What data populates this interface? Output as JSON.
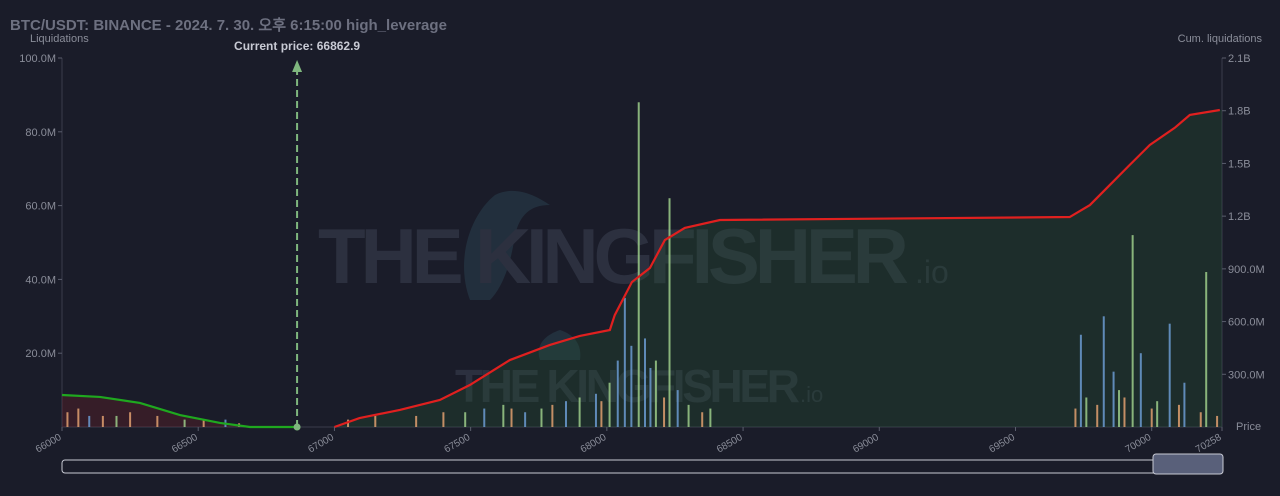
{
  "chart_data": {
    "type": "liquidation",
    "title": "BTC/USDT: BINANCE - 2024. 7. 30. 오후 6:15:00 high_leverage",
    "y_label": "Liquidations",
    "y2_label": "Cum. liquidations",
    "x_label": "Price",
    "watermark": [
      "THE KINGFISHER",
      ".io"
    ],
    "annotation": {
      "text": "Current price: 66862.9",
      "x": 66862.9,
      "color": "#7fb77e"
    },
    "xlim": [
      66000,
      70258
    ],
    "xticks": [
      66000,
      66500,
      67000,
      67500,
      68000,
      68500,
      69000,
      69500,
      70000,
      70258
    ],
    "ylim": [
      0,
      100000000
    ],
    "yticks": [
      {
        "value": 20000000,
        "label": "20.0M"
      },
      {
        "value": 40000000,
        "label": "40.0M"
      },
      {
        "value": 60000000,
        "label": "60.0M"
      },
      {
        "value": 80000000,
        "label": "80.0M"
      },
      {
        "value": 100000000,
        "label": "100.0M"
      }
    ],
    "y2lim": [
      0,
      2100000000
    ],
    "y2ticks": [
      {
        "value": 300000000,
        "label": "300.0M"
      },
      {
        "value": 600000000,
        "label": "600.0M"
      },
      {
        "value": 900000000,
        "label": "900.0M"
      },
      {
        "value": 1200000000,
        "label": "1.2B"
      },
      {
        "value": 1500000000,
        "label": "1.5B"
      },
      {
        "value": 1800000000,
        "label": "1.8B"
      },
      {
        "value": 2100000000,
        "label": "2.1B"
      }
    ],
    "bars": [
      {
        "color": "#9ccc8a",
        "x": [
          66200,
          66450,
          67480,
          67620,
          67760,
          67900,
          68010,
          68117,
          68180,
          68230,
          68300,
          68380,
          69760,
          69880,
          69930,
          70020,
          70200
        ],
        "values": [
          3000000,
          2000000,
          4000000,
          6000000,
          5000000,
          8000000,
          12000000,
          88000000,
          18000000,
          62000000,
          6000000,
          5000000,
          8000000,
          10000000,
          52000000,
          7000000,
          42000000
        ]
      },
      {
        "color": "#6b9bd1",
        "x": [
          66100,
          66600,
          67550,
          67700,
          67850,
          67960,
          68040,
          68066,
          68090,
          68140,
          68160,
          68260,
          69740,
          69824,
          69860,
          69960,
          70066,
          70120
        ],
        "values": [
          3000000,
          2000000,
          5000000,
          4000000,
          7000000,
          9000000,
          18000000,
          35000000,
          22000000,
          24000000,
          16000000,
          10000000,
          25000000,
          30000000,
          15000000,
          20000000,
          28000000,
          12000000
        ]
      },
      {
        "color": "#e0a070",
        "x": [
          66020,
          66060,
          66150,
          66250,
          66350,
          66520,
          66650,
          67050,
          67150,
          67300,
          67400,
          67650,
          67800,
          67980,
          68210,
          68350,
          69720,
          69800,
          69900,
          70000,
          70100,
          70180,
          70240
        ],
        "values": [
          4000000,
          5000000,
          3000000,
          4000000,
          3000000,
          2000000,
          1000000,
          2000000,
          3000000,
          3000000,
          4000000,
          5000000,
          6000000,
          7000000,
          8000000,
          4000000,
          5000000,
          6000000,
          8000000,
          5000000,
          6000000,
          4000000,
          3000000
        ]
      }
    ],
    "series": [
      {
        "color": "#1fa81f",
        "area_color": "rgba(140,30,40,0.25)",
        "axis": "y2",
        "x": [
          66000,
          66139,
          66286,
          66433,
          66580,
          66690,
          66863
        ],
        "values": [
          182000000,
          171000000,
          137000000,
          68000000,
          23000000,
          0,
          0
        ]
      },
      {
        "color": "#e0201f",
        "area_color": "rgba(40,90,50,0.28)",
        "axis": "y2",
        "x": [
          67000,
          67092,
          67240,
          67387,
          67497,
          67644,
          67791,
          67901,
          68011,
          68029,
          68092,
          68158,
          68213,
          68286,
          68415,
          69699,
          69773,
          69846,
          69919,
          69993,
          70084,
          70140,
          70250
        ],
        "values": [
          0,
          51000000,
          97000000,
          154000000,
          239000000,
          381000000,
          467000000,
          518000000,
          552000000,
          637000000,
          825000000,
          905000000,
          1064000000,
          1133000000,
          1178000000,
          1195000000,
          1263000000,
          1377000000,
          1491000000,
          1605000000,
          1702000000,
          1776000000,
          1804000000
        ]
      }
    ]
  }
}
